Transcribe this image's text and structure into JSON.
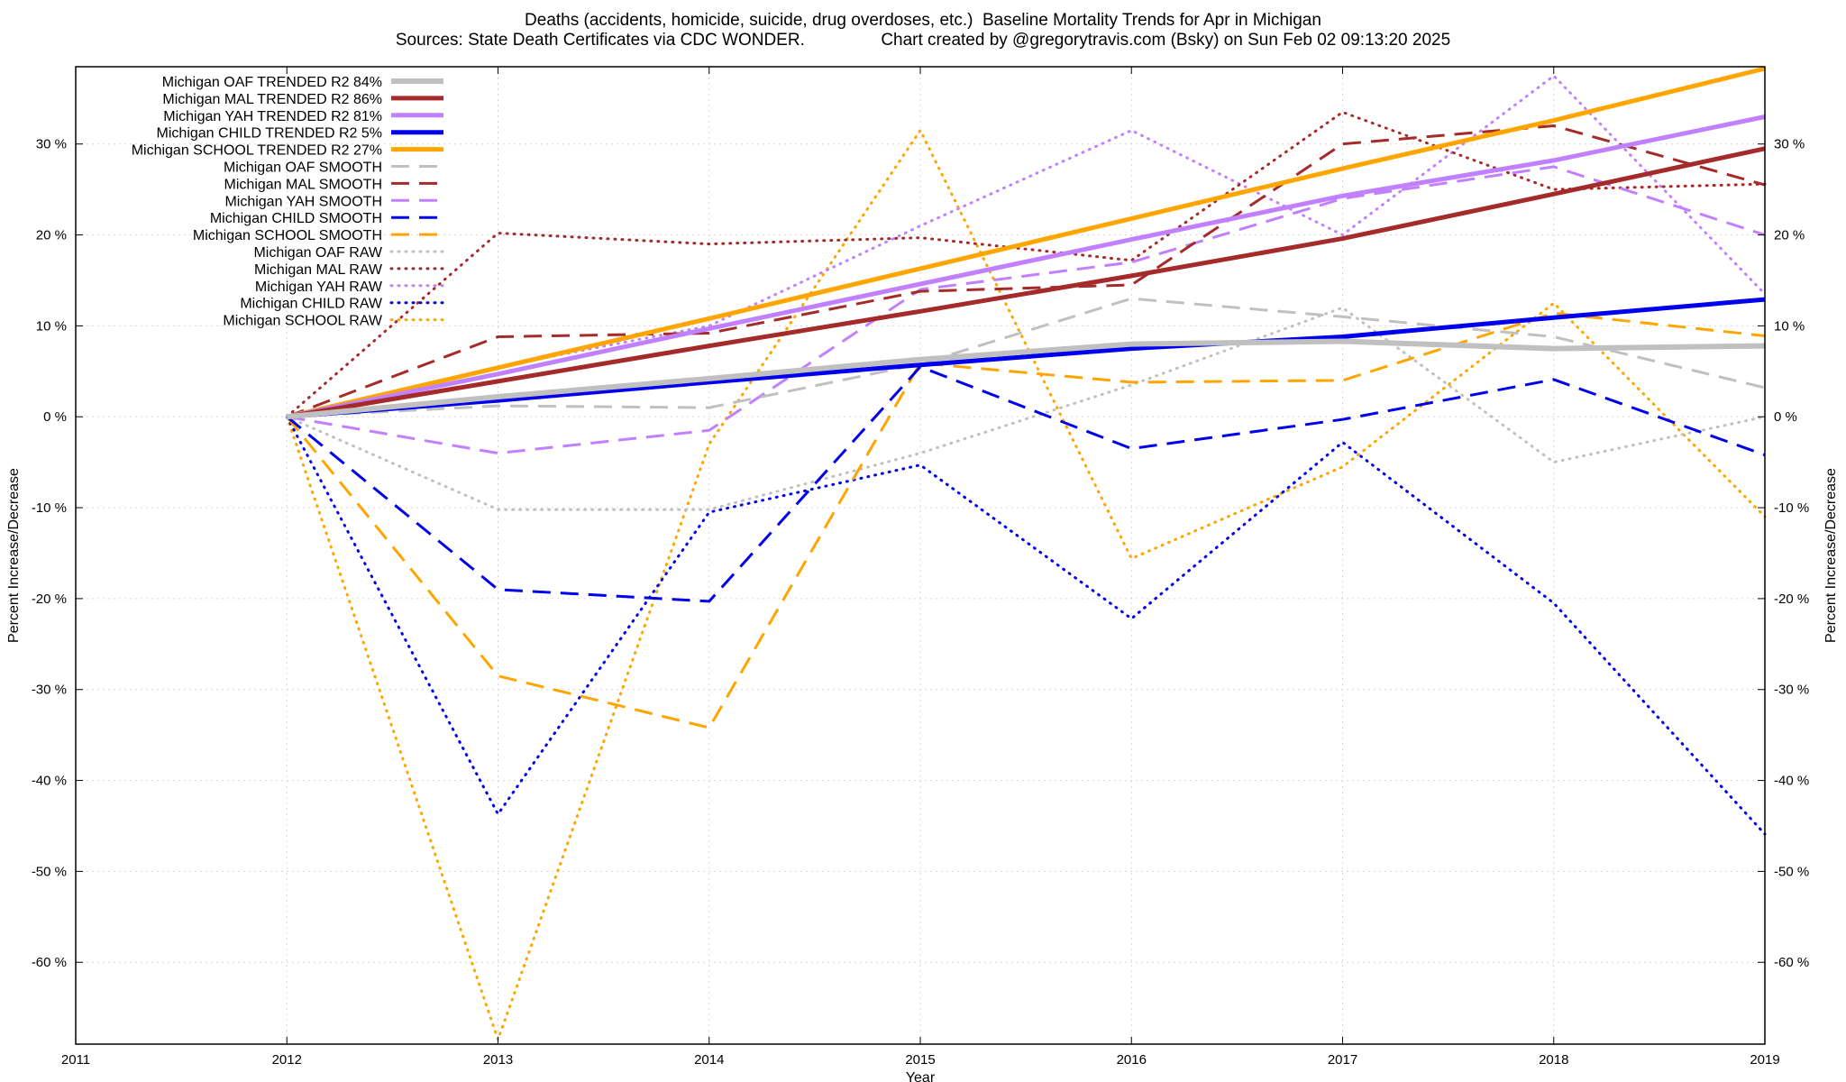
{
  "chart_data": {
    "type": "line",
    "title": "Deaths (accidents, homicide, suicide, drug overdoses, etc.)  Baseline Mortality Trends for Apr in Michigan",
    "subtitle": "Sources: State Death Certificates via CDC WONDER.                Chart created by @gregorytravis.com (Bsky) on Sun Feb 02 09:13:20 2025",
    "xlabel": "Year",
    "ylabel": "Percent Increase/Decrease",
    "y2label": "Percent Increase/Decrease",
    "xlim": [
      2011,
      2019
    ],
    "ylim": [
      -69,
      38.5
    ],
    "x_ticks": [
      "2011",
      "2012",
      "2013",
      "2014",
      "2015",
      "2016",
      "2017",
      "2018",
      "2019"
    ],
    "y_ticks": [
      {
        "v": 30,
        "label": "30 %"
      },
      {
        "v": 20,
        "label": "20 %"
      },
      {
        "v": 10,
        "label": "10 %"
      },
      {
        "v": 0,
        "label": "0 %"
      },
      {
        "v": -10,
        "label": "-10 %"
      },
      {
        "v": -20,
        "label": "-20 %"
      },
      {
        "v": -30,
        "label": "-30 %"
      },
      {
        "v": -40,
        "label": "-40 %"
      },
      {
        "v": -50,
        "label": "-50 %"
      },
      {
        "v": -60,
        "label": "-60 %"
      }
    ],
    "grid": true,
    "legend_position": "top-left",
    "x": [
      2012,
      2013,
      2014,
      2015,
      2016,
      2017,
      2018,
      2019
    ],
    "series": [
      {
        "name": "Michigan OAF TRENDED R2  84%",
        "style": "solid",
        "color": "#c0c0c0",
        "width": 6,
        "values": [
          0,
          2.2,
          4.2,
          6.3,
          8.0,
          8.3,
          7.5,
          7.8
        ]
      },
      {
        "name": "Michigan MAL TRENDED R2  86%",
        "style": "solid",
        "color": "#a52a2a",
        "width": 5,
        "values": [
          0,
          3.9,
          7.8,
          11.6,
          15.5,
          19.6,
          24.5,
          29.5
        ]
      },
      {
        "name": "Michigan YAH TRENDED R2  81%",
        "style": "solid",
        "color": "#c080ff",
        "width": 5,
        "values": [
          0,
          4.7,
          9.7,
          14.6,
          19.5,
          24.3,
          28.2,
          33.0
        ]
      },
      {
        "name": "Michigan CHILD TRENDED R2   5%",
        "style": "solid",
        "color": "#0000ee",
        "width": 5,
        "values": [
          0,
          1.8,
          3.8,
          5.7,
          7.5,
          8.8,
          10.9,
          12.9
        ]
      },
      {
        "name": "Michigan SCHOOL TRENDED R2  27%",
        "style": "solid",
        "color": "#ffa500",
        "width": 5,
        "values": [
          0,
          5.4,
          10.8,
          16.3,
          21.8,
          27.3,
          32.6,
          38.3
        ]
      },
      {
        "name": "Michigan OAF SMOOTH",
        "style": "dashed",
        "color": "#c0c0c0",
        "width": 3,
        "values": [
          0,
          1.2,
          1.0,
          5.8,
          13.0,
          11.0,
          8.8,
          3.2
        ]
      },
      {
        "name": "Michigan MAL SMOOTH",
        "style": "dashed",
        "color": "#a52a2a",
        "width": 3,
        "values": [
          0,
          8.8,
          9.2,
          13.8,
          14.5,
          30.0,
          32.0,
          25.5
        ]
      },
      {
        "name": "Michigan YAH SMOOTH",
        "style": "dashed",
        "color": "#c080ff",
        "width": 3,
        "values": [
          0,
          -4.0,
          -1.5,
          14.0,
          17.0,
          24.0,
          27.5,
          20.0
        ]
      },
      {
        "name": "Michigan CHILD SMOOTH",
        "style": "dashed",
        "color": "#0000ee",
        "width": 3,
        "values": [
          0,
          -19.0,
          -20.3,
          5.5,
          -3.5,
          -0.3,
          4.1,
          -4.2
        ]
      },
      {
        "name": "Michigan SCHOOL SMOOTH",
        "style": "dashed",
        "color": "#ffa500",
        "width": 3,
        "values": [
          0,
          -28.5,
          -34.2,
          5.9,
          3.8,
          4.0,
          11.4,
          8.9
        ]
      },
      {
        "name": "Michigan OAF RAW",
        "style": "dotted",
        "color": "#c0c0c0",
        "width": 3,
        "values": [
          0,
          -10.2,
          -10.2,
          -4.0,
          3.5,
          12.0,
          -5.0,
          0
        ]
      },
      {
        "name": "Michigan MAL RAW",
        "style": "dotted",
        "color": "#a52a2a",
        "width": 3,
        "values": [
          0,
          20.2,
          19.0,
          19.7,
          17.2,
          33.5,
          25.0,
          25.6
        ]
      },
      {
        "name": "Michigan YAH RAW",
        "style": "dotted",
        "color": "#c080ff",
        "width": 3,
        "values": [
          0,
          5.5,
          10.0,
          21.0,
          31.5,
          20.0,
          37.5,
          13.5
        ]
      },
      {
        "name": "Michigan CHILD RAW",
        "style": "dotted",
        "color": "#0000ee",
        "width": 3,
        "values": [
          0,
          -43.7,
          -10.5,
          -5.3,
          -22.2,
          -2.8,
          -20.5,
          -45.9
        ]
      },
      {
        "name": "Michigan SCHOOL RAW",
        "style": "dotted",
        "color": "#ffa500",
        "width": 3,
        "values": [
          0,
          -68.5,
          -3.0,
          31.5,
          -15.6,
          -5.5,
          12.5,
          -11.0
        ]
      }
    ]
  }
}
